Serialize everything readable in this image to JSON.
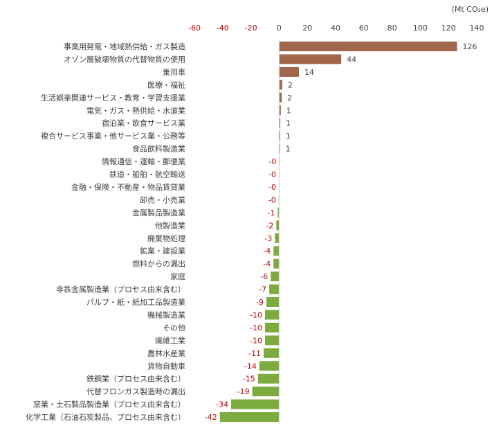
{
  "chart_data": {
    "type": "bar",
    "orientation": "horizontal",
    "unit_label": "(Mt CO₂e)",
    "xlim": [
      -60,
      140
    ],
    "xticks": [
      -60,
      -40,
      -20,
      0,
      20,
      40,
      60,
      80,
      100,
      120,
      140
    ],
    "grid": false,
    "colors": {
      "positive": "#A0674B",
      "negative": "#7CAC3E",
      "negative_tick": "#C00000",
      "positive_tick": "#404040",
      "negative_label": "#C00000",
      "positive_label": "#404040"
    },
    "categories": [
      "事業用発電・地域熱供給・ガス製造",
      "オゾン層破壊物質の代替物質の使用",
      "乗用車",
      "医療・福祉",
      "生活娯楽関連サービス・教育・学習支援業",
      "電気・ガス・熱供給・水道業",
      "宿泊業・飲食サービス業",
      "複合サービス事業・他サービス業・公務等",
      "食品飲料製造業",
      "情報通信・運輸・郵便業",
      "鉄道・船舶・航空輸送",
      "金融・保険・不動産・物品賃貸業",
      "卸売・小売業",
      "金属製品製造業",
      "他製造業",
      "廃棄物処理",
      "鉱業・建設業",
      "燃料からの漏出",
      "家庭",
      "非鉄金属製造業（プロセス由来含む）",
      "パルプ・紙・紙加工品製造業",
      "機械製造業",
      "その他",
      "繊維工業",
      "農林水産業",
      "貨物自動車",
      "鉄鋼業（プロセス由来含む）",
      "代替フロンガス製造時の漏出",
      "窯業・土石製品製造業（プロセス由来含む）",
      "化学工業（石油石炭製品、プロセス由来含む）"
    ],
    "values": [
      126,
      44,
      14,
      2.2,
      1.8,
      1.2,
      0.8,
      0.7,
      0.6,
      -0.1,
      -0.2,
      -0.2,
      -0.3,
      -1,
      -2,
      -3,
      -4,
      -4,
      -6,
      -7,
      -9,
      -10,
      -10,
      -10,
      -11,
      -14,
      -15,
      -19,
      -34,
      -42
    ],
    "labels": [
      "126",
      "44",
      "14",
      "2",
      "2",
      "1",
      "1",
      "1",
      "1",
      "-0",
      "-0",
      "-0",
      "-0",
      "-1",
      "-2",
      "-3",
      "-4",
      "-4",
      "-6",
      "-7",
      "-9",
      "-10",
      "-10",
      "-10",
      "-11",
      "-14",
      "-15",
      "-19",
      "-34",
      "-42"
    ]
  }
}
